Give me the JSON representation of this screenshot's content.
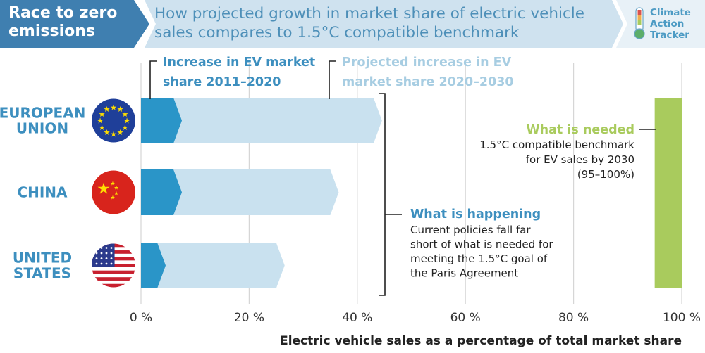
{
  "header": {
    "tag": "Race to zero\nemissions",
    "title": "How projected growth in market share of electric vehicle\nsales compares to 1.5°C compatible benchmark",
    "logo": {
      "line1": "Climate",
      "line2": "Action",
      "line3": "Tracker"
    }
  },
  "colors": {
    "header_dark": "#3f7fb0",
    "header_light": "#cfe2ef",
    "series_2011_2020": "#2a95c8",
    "series_2020_2030": "#c9e1ef",
    "needed": "#a9cb5d",
    "label_blue": "#3d8fbf",
    "label_light_blue": "#a7cde2",
    "label_green": "#a9cb5d"
  },
  "chart_data": {
    "type": "bar",
    "stacked": true,
    "orientation": "horizontal",
    "categories": [
      "EUROPEAN UNION",
      "CHINA",
      "UNITED STATES"
    ],
    "category_display": [
      [
        "EUROPEAN",
        "UNION"
      ],
      [
        "CHINA"
      ],
      [
        "UNITED",
        "STATES"
      ]
    ],
    "series": [
      {
        "name": "Increase in EV market share 2011–2020",
        "values": [
          6,
          6,
          3
        ]
      },
      {
        "name": "Projected increase in EV market share 2020–2030",
        "values": [
          37,
          29,
          22
        ]
      }
    ],
    "x_ticks": [
      0,
      20,
      40,
      60,
      80,
      100
    ],
    "x_tick_labels": [
      "0 %",
      "20 %",
      "40 %",
      "60 %",
      "80 %",
      "100 %"
    ],
    "xlim": [
      0,
      100
    ],
    "xlabel": "Electric vehicle sales as a percentage of total market share",
    "needed_range": [
      95,
      100
    ],
    "legend": {
      "series1": [
        "Increase in EV market",
        "share 2011–2020"
      ],
      "series2": [
        "Projected increase in EV",
        "market share 2020–2030"
      ]
    },
    "annotations": {
      "needed": {
        "title": "What is needed",
        "lines": [
          "1.5°C compatible benchmark",
          "for EV sales by 2030",
          "(95–100%)"
        ]
      },
      "happening": {
        "title": "What is happening",
        "lines": [
          "Current policies fall far",
          "short of what is needed for",
          "meeting the 1.5°C goal of",
          "the Paris Agreement"
        ]
      }
    },
    "grid": true,
    "flags": [
      "eu-flag-icon",
      "china-flag-icon",
      "us-flag-icon"
    ]
  }
}
